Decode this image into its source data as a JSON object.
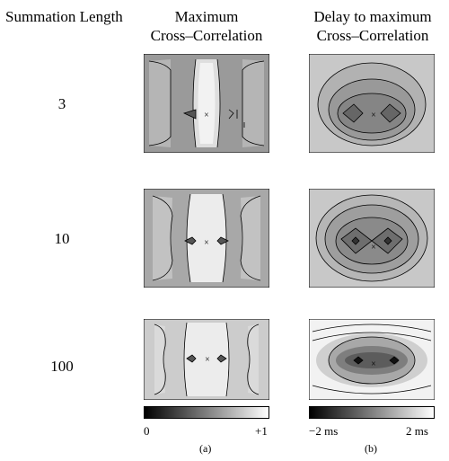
{
  "headers": {
    "summation": "Summation Length",
    "max_line1": "Maximum",
    "max_line2": "Cross–Correlation",
    "delay_line1": "Delay to maximum",
    "delay_line2": "Cross–Correlation"
  },
  "rows": [
    {
      "label": "3"
    },
    {
      "label": "10"
    },
    {
      "label": "100"
    }
  ],
  "colorbars": {
    "a": {
      "min_label": "0",
      "max_label": "+1",
      "caption": "(a)"
    },
    "b": {
      "min_label": "−2 ms",
      "max_label": "2 ms",
      "caption": "(b)"
    }
  },
  "center_marker": "×"
}
